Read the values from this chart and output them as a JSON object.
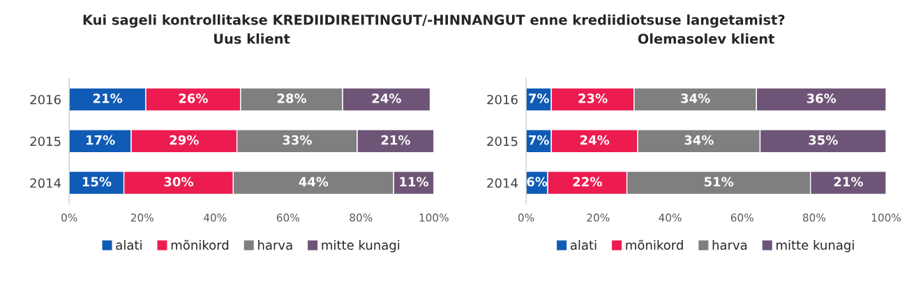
{
  "chart_data": [
    {
      "type": "bar",
      "orientation": "horizontal",
      "stacked": true,
      "title": "Kui sageli kontrollitakse KREDIIDIREITINGUT/-HINNANGUT enne krediidiotsuse langetamist?",
      "subtitle": "Uus klient",
      "categories": [
        "2016",
        "2015",
        "2014"
      ],
      "series": [
        {
          "name": "alati",
          "color": "#0f5bb5",
          "values": [
            21,
            17,
            15
          ]
        },
        {
          "name": "mõnikord",
          "color": "#ec1c50",
          "values": [
            26,
            29,
            30
          ]
        },
        {
          "name": "harva",
          "color": "#7f7f7f",
          "values": [
            28,
            33,
            44
          ]
        },
        {
          "name": "mitte kunagi",
          "color": "#6e5577",
          "values": [
            24,
            21,
            11
          ]
        }
      ],
      "xlim": [
        0,
        100
      ],
      "xticks": [
        {
          "value": 0,
          "label": "0%"
        },
        {
          "value": 20,
          "label": "20%"
        },
        {
          "value": 40,
          "label": "40%"
        },
        {
          "value": 60,
          "label": "60%"
        },
        {
          "value": 80,
          "label": "80%"
        },
        {
          "value": 100,
          "label": "100%"
        }
      ],
      "value_labels": [
        [
          "21%",
          "17%",
          "15%"
        ],
        [
          "26%",
          "29%",
          "30%"
        ],
        [
          "28%",
          "33%",
          "44%"
        ],
        [
          "24%",
          "21%",
          "11%"
        ]
      ],
      "legend": "bottom",
      "grid": false
    },
    {
      "type": "bar",
      "orientation": "horizontal",
      "stacked": true,
      "title": "Olemasolev klient",
      "categories": [
        "2016",
        "2015",
        "2014"
      ],
      "series": [
        {
          "name": "alati",
          "color": "#0f5bb5",
          "values": [
            7,
            7,
            6
          ]
        },
        {
          "name": "mõnikord",
          "color": "#ec1c50",
          "values": [
            23,
            24,
            22
          ]
        },
        {
          "name": "harva",
          "color": "#7f7f7f",
          "values": [
            34,
            34,
            51
          ]
        },
        {
          "name": "mitte kunagi",
          "color": "#6e5577",
          "values": [
            36,
            35,
            21
          ]
        }
      ],
      "xlim": [
        0,
        100
      ],
      "xticks": [
        {
          "value": 0,
          "label": "0%"
        },
        {
          "value": 20,
          "label": "20%"
        },
        {
          "value": 40,
          "label": "40%"
        },
        {
          "value": 60,
          "label": "60%"
        },
        {
          "value": 80,
          "label": "80%"
        },
        {
          "value": 100,
          "label": "100%"
        }
      ],
      "value_labels": [
        [
          "7%",
          "7%",
          "6%"
        ],
        [
          "23%",
          "24%",
          "22%"
        ],
        [
          "34%",
          "34%",
          "51%"
        ],
        [
          "36%",
          "35%",
          "21%"
        ]
      ],
      "legend": "bottom",
      "grid": false
    }
  ]
}
